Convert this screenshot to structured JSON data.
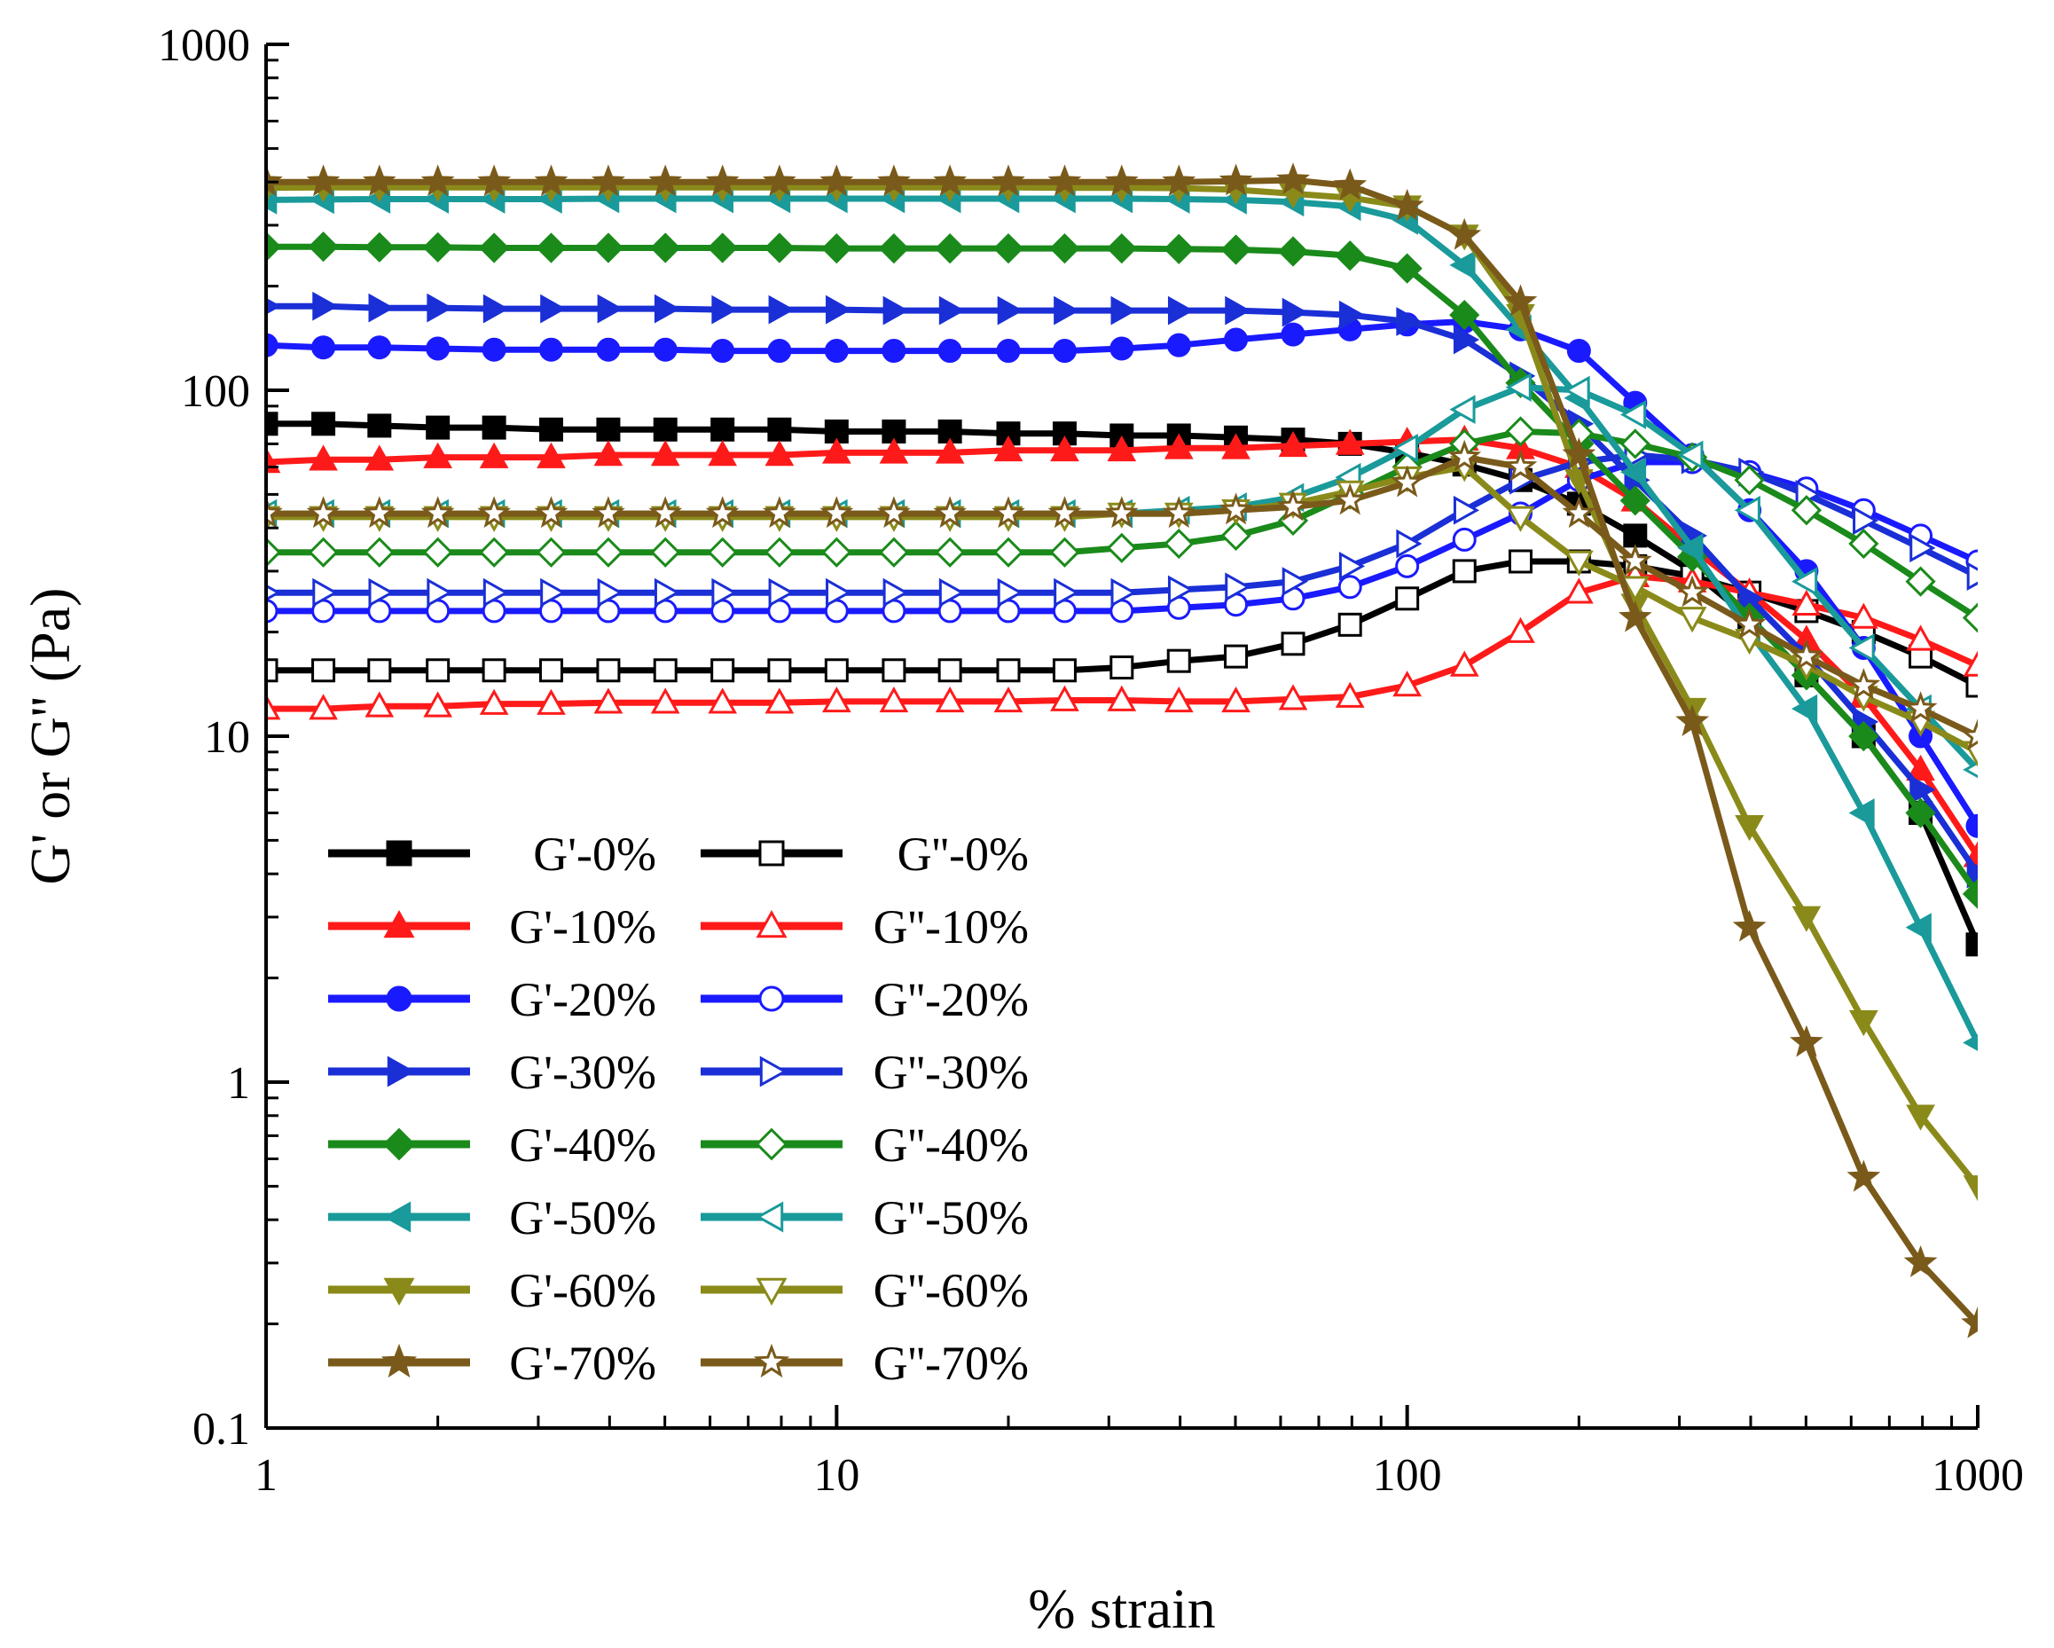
{
  "chart_data": {
    "type": "line",
    "title": "",
    "xlabel": "% strain",
    "ylabel": "G' or G'' (Pa)",
    "xscale": "log",
    "yscale": "log",
    "xlim": [
      1,
      1000
    ],
    "ylim": [
      0.1,
      1000
    ],
    "x_ticks": [
      {
        "v": 1,
        "label": "1"
      },
      {
        "v": 10,
        "label": "10"
      },
      {
        "v": 100,
        "label": "100"
      },
      {
        "v": 1000,
        "label": "1000"
      }
    ],
    "y_ticks": [
      {
        "v": 0.1,
        "label": "0.1"
      },
      {
        "v": 1,
        "label": "1"
      },
      {
        "v": 10,
        "label": "10"
      },
      {
        "v": 100,
        "label": "100"
      },
      {
        "v": 1000,
        "label": "1000"
      }
    ],
    "legend_position": "bottom-left",
    "series": [
      {
        "name": "G'-0%",
        "color": "#000000",
        "marker": "square",
        "filled": true,
        "x": [
          1,
          1.26,
          1.58,
          2,
          2.51,
          3.16,
          3.98,
          5.01,
          6.31,
          7.94,
          10,
          12.6,
          15.8,
          20,
          25.1,
          31.6,
          39.8,
          50.1,
          63.1,
          79.4,
          100,
          126,
          158,
          200,
          251,
          316,
          398,
          501,
          631,
          794,
          1000
        ],
        "y": [
          80,
          80,
          79,
          78,
          78,
          77,
          77,
          77,
          77,
          77,
          76,
          76,
          76,
          75,
          75,
          74,
          74,
          73,
          72,
          70,
          66,
          61,
          55,
          47,
          38,
          30,
          22,
          15,
          10,
          6,
          2.5
        ]
      },
      {
        "name": "G''-0%",
        "color": "#000000",
        "marker": "square",
        "filled": false,
        "x": [
          1,
          1.26,
          1.58,
          2,
          2.51,
          3.16,
          3.98,
          5.01,
          6.31,
          7.94,
          10,
          12.6,
          15.8,
          20,
          25.1,
          31.6,
          39.8,
          50.1,
          63.1,
          79.4,
          100,
          126,
          158,
          200,
          251,
          316,
          398,
          501,
          631,
          794,
          1000
        ],
        "y": [
          15.5,
          15.5,
          15.5,
          15.5,
          15.5,
          15.5,
          15.5,
          15.5,
          15.5,
          15.5,
          15.5,
          15.5,
          15.5,
          15.5,
          15.5,
          15.8,
          16.5,
          17,
          18.5,
          21,
          25,
          30,
          32,
          32,
          31,
          29,
          26,
          23,
          20,
          17,
          14
        ]
      },
      {
        "name": "G'-10%",
        "color": "#ff1a1a",
        "marker": "triangle-up",
        "filled": true,
        "x": [
          1,
          1.26,
          1.58,
          2,
          2.51,
          3.16,
          3.98,
          5.01,
          6.31,
          7.94,
          10,
          12.6,
          15.8,
          20,
          25.1,
          31.6,
          39.8,
          50.1,
          63.1,
          79.4,
          100,
          126,
          158,
          200,
          251,
          316,
          398,
          501,
          631,
          794,
          1000
        ],
        "y": [
          62,
          63,
          63,
          64,
          64,
          64,
          65,
          65,
          65,
          65,
          66,
          66,
          66,
          67,
          67,
          67,
          68,
          68,
          69,
          70,
          71,
          72,
          68,
          60,
          48,
          35,
          26,
          19,
          13,
          8,
          4.5
        ]
      },
      {
        "name": "G''-10%",
        "color": "#ff1a1a",
        "marker": "triangle-up",
        "filled": false,
        "x": [
          1,
          1.26,
          1.58,
          2,
          2.51,
          3.16,
          3.98,
          5.01,
          6.31,
          7.94,
          10,
          12.6,
          15.8,
          20,
          25.1,
          31.6,
          39.8,
          50.1,
          63.1,
          79.4,
          100,
          126,
          158,
          200,
          251,
          316,
          398,
          501,
          631,
          794,
          1000
        ],
        "y": [
          12,
          12,
          12.2,
          12.2,
          12.4,
          12.4,
          12.5,
          12.5,
          12.5,
          12.5,
          12.6,
          12.6,
          12.6,
          12.6,
          12.7,
          12.7,
          12.6,
          12.6,
          12.8,
          13,
          14,
          16,
          20,
          26,
          29,
          28,
          26,
          24,
          22,
          19,
          16
        ]
      },
      {
        "name": "G'-20%",
        "color": "#1a1aff",
        "marker": "circle",
        "filled": true,
        "x": [
          1,
          1.26,
          1.58,
          2,
          2.51,
          3.16,
          3.98,
          5.01,
          6.31,
          7.94,
          10,
          12.6,
          15.8,
          20,
          25.1,
          31.6,
          39.8,
          50.1,
          63.1,
          79.4,
          100,
          126,
          158,
          200,
          251,
          316,
          398,
          501,
          631,
          794,
          1000
        ],
        "y": [
          135,
          133,
          133,
          132,
          131,
          131,
          131,
          131,
          130,
          130,
          130,
          130,
          130,
          130,
          130,
          132,
          135,
          140,
          145,
          150,
          155,
          158,
          150,
          130,
          92,
          65,
          45,
          30,
          18,
          10,
          5.5
        ]
      },
      {
        "name": "G''-20%",
        "color": "#1a1aff",
        "marker": "circle",
        "filled": false,
        "x": [
          1,
          1.26,
          1.58,
          2,
          2.51,
          3.16,
          3.98,
          5.01,
          6.31,
          7.94,
          10,
          12.6,
          15.8,
          20,
          25.1,
          31.6,
          39.8,
          50.1,
          63.1,
          79.4,
          100,
          126,
          158,
          200,
          251,
          316,
          398,
          501,
          631,
          794,
          1000
        ],
        "y": [
          23,
          23,
          23,
          23,
          23,
          23,
          23,
          23,
          23,
          23,
          23,
          23,
          23,
          23,
          23,
          23,
          23.5,
          24,
          25,
          27,
          31,
          37,
          44,
          55,
          62,
          62,
          58,
          52,
          45,
          38,
          32
        ]
      },
      {
        "name": "G'-30%",
        "color": "#1a2fd6",
        "marker": "triangle-right",
        "filled": true,
        "x": [
          1,
          1.26,
          1.58,
          2,
          2.51,
          3.16,
          3.98,
          5.01,
          6.31,
          7.94,
          10,
          12.6,
          15.8,
          20,
          25.1,
          31.6,
          39.8,
          50.1,
          63.1,
          79.4,
          100,
          126,
          158,
          200,
          251,
          316,
          398,
          501,
          631,
          794,
          1000
        ],
        "y": [
          175,
          175,
          173,
          173,
          172,
          172,
          172,
          172,
          171,
          171,
          171,
          170,
          170,
          170,
          170,
          170,
          170,
          170,
          168,
          165,
          158,
          140,
          110,
          80,
          55,
          38,
          25,
          17,
          11,
          7,
          4
        ]
      },
      {
        "name": "G''-30%",
        "color": "#1a2fd6",
        "marker": "triangle-right",
        "filled": false,
        "x": [
          1,
          1.26,
          1.58,
          2,
          2.51,
          3.16,
          3.98,
          5.01,
          6.31,
          7.94,
          10,
          12.6,
          15.8,
          20,
          25.1,
          31.6,
          39.8,
          50.1,
          63.1,
          79.4,
          100,
          126,
          158,
          200,
          251,
          316,
          398,
          501,
          631,
          794,
          1000
        ],
        "y": [
          26,
          26,
          26,
          26,
          26,
          26,
          26,
          26,
          26,
          26,
          26,
          26,
          26,
          26,
          26,
          26,
          26.5,
          27,
          28,
          31,
          36,
          45,
          55,
          62,
          65,
          63,
          58,
          50,
          42,
          35,
          29
        ]
      },
      {
        "name": "G'-40%",
        "color": "#1a8a1a",
        "marker": "diamond",
        "filled": true,
        "x": [
          1,
          1.26,
          1.58,
          2,
          2.51,
          3.16,
          3.98,
          5.01,
          6.31,
          7.94,
          10,
          12.6,
          15.8,
          20,
          25.1,
          31.6,
          39.8,
          50.1,
          63.1,
          79.4,
          100,
          126,
          158,
          200,
          251,
          316,
          398,
          501,
          631,
          794,
          1000
        ],
        "y": [
          260,
          260,
          259,
          259,
          258,
          258,
          258,
          258,
          258,
          258,
          257,
          257,
          257,
          257,
          257,
          257,
          256,
          255,
          252,
          245,
          225,
          165,
          105,
          70,
          48,
          33,
          22,
          15,
          10,
          6,
          3.5
        ]
      },
      {
        "name": "G''-40%",
        "color": "#1a8a1a",
        "marker": "diamond",
        "filled": false,
        "x": [
          1,
          1.26,
          1.58,
          2,
          2.51,
          3.16,
          3.98,
          5.01,
          6.31,
          7.94,
          10,
          12.6,
          15.8,
          20,
          25.1,
          31.6,
          39.8,
          50.1,
          63.1,
          79.4,
          100,
          126,
          158,
          200,
          251,
          316,
          398,
          501,
          631,
          794,
          1000
        ],
        "y": [
          34,
          34,
          34,
          34,
          34,
          34,
          34,
          34,
          34,
          34,
          34,
          34,
          34,
          34,
          34,
          35,
          36,
          38,
          42,
          50,
          60,
          70,
          76,
          75,
          70,
          64,
          55,
          45,
          36,
          28,
          22
        ]
      },
      {
        "name": "G'-50%",
        "color": "#1a9a9a",
        "marker": "triangle-left",
        "filled": true,
        "x": [
          1,
          1.26,
          1.58,
          2,
          2.51,
          3.16,
          3.98,
          5.01,
          6.31,
          7.94,
          10,
          12.6,
          15.8,
          20,
          25.1,
          31.6,
          39.8,
          50.1,
          63.1,
          79.4,
          100,
          126,
          158,
          200,
          251,
          316,
          398,
          501,
          631,
          794,
          1000
        ],
        "y": [
          355,
          356,
          357,
          357,
          357,
          357,
          358,
          358,
          358,
          358,
          358,
          358,
          358,
          358,
          358,
          358,
          357,
          355,
          350,
          340,
          310,
          230,
          150,
          95,
          58,
          35,
          20,
          12,
          6,
          2.8,
          1.3
        ]
      },
      {
        "name": "G''-50%",
        "color": "#1a9a9a",
        "marker": "triangle-left",
        "filled": false,
        "x": [
          1,
          1.26,
          1.58,
          2,
          2.51,
          3.16,
          3.98,
          5.01,
          6.31,
          7.94,
          10,
          12.6,
          15.8,
          20,
          25.1,
          31.6,
          39.8,
          50.1,
          63.1,
          79.4,
          100,
          126,
          158,
          200,
          251,
          316,
          398,
          501,
          631,
          794,
          1000
        ],
        "y": [
          44,
          44,
          44,
          44,
          44,
          44,
          44,
          44,
          44,
          44,
          44,
          44,
          44,
          44,
          44,
          44,
          45,
          46,
          49,
          56,
          68,
          88,
          102,
          100,
          85,
          65,
          45,
          28,
          18,
          12,
          8
        ]
      },
      {
        "name": "G'-60%",
        "color": "#8a8a1a",
        "marker": "triangle-down",
        "filled": true,
        "x": [
          1,
          1.26,
          1.58,
          2,
          2.51,
          3.16,
          3.98,
          5.01,
          6.31,
          7.94,
          10,
          12.6,
          15.8,
          20,
          25.1,
          31.6,
          39.8,
          50.1,
          63.1,
          79.4,
          100,
          126,
          158,
          200,
          251,
          316,
          398,
          501,
          631,
          794,
          1000
        ],
        "y": [
          385,
          386,
          386,
          386,
          386,
          386,
          386,
          386,
          386,
          386,
          386,
          386,
          386,
          386,
          385,
          385,
          384,
          380,
          370,
          360,
          340,
          280,
          165,
          55,
          24,
          12,
          5.5,
          3,
          1.5,
          0.8,
          0.5
        ]
      },
      {
        "name": "G''-60%",
        "color": "#8a8a1a",
        "marker": "triangle-down",
        "filled": false,
        "x": [
          1,
          1.26,
          1.58,
          2,
          2.51,
          3.16,
          3.98,
          5.01,
          6.31,
          7.94,
          10,
          12.6,
          15.8,
          20,
          25.1,
          31.6,
          39.8,
          50.1,
          63.1,
          79.4,
          100,
          126,
          158,
          200,
          251,
          316,
          398,
          501,
          631,
          794,
          1000
        ],
        "y": [
          43,
          43,
          43,
          43,
          43,
          43,
          43,
          43,
          43,
          43,
          43,
          43,
          43,
          43,
          43,
          44,
          44,
          45,
          47,
          51,
          56,
          60,
          43,
          32,
          27,
          22,
          19,
          16,
          13,
          11,
          9
        ]
      },
      {
        "name": "G'-70%",
        "color": "#7a5a1a",
        "marker": "star",
        "filled": true,
        "x": [
          1,
          1.26,
          1.58,
          2,
          2.51,
          3.16,
          3.98,
          5.01,
          6.31,
          7.94,
          10,
          12.6,
          15.8,
          20,
          25.1,
          31.6,
          39.8,
          50.1,
          63.1,
          79.4,
          100,
          126,
          158,
          200,
          251,
          316,
          398,
          501,
          631,
          794,
          1000
        ],
        "y": [
          400,
          400,
          400,
          400,
          400,
          400,
          400,
          400,
          400,
          400,
          400,
          400,
          400,
          400,
          400,
          400,
          400,
          402,
          405,
          390,
          340,
          280,
          180,
          65,
          22,
          11,
          2.8,
          1.3,
          0.53,
          0.3,
          0.2
        ]
      },
      {
        "name": "G''-70%",
        "color": "#7a5a1a",
        "marker": "star",
        "filled": false,
        "x": [
          1,
          1.26,
          1.58,
          2,
          2.51,
          3.16,
          3.98,
          5.01,
          6.31,
          7.94,
          10,
          12.6,
          15.8,
          20,
          25.1,
          31.6,
          39.8,
          50.1,
          63.1,
          79.4,
          100,
          126,
          158,
          200,
          251,
          316,
          398,
          501,
          631,
          794,
          1000
        ],
        "y": [
          44,
          44,
          44,
          44,
          44,
          44,
          44,
          44,
          44,
          44,
          44,
          44,
          44,
          44,
          44,
          44,
          44,
          45,
          46,
          48,
          54,
          64,
          60,
          44,
          32,
          26,
          21,
          17,
          14,
          12,
          10
        ]
      }
    ]
  }
}
